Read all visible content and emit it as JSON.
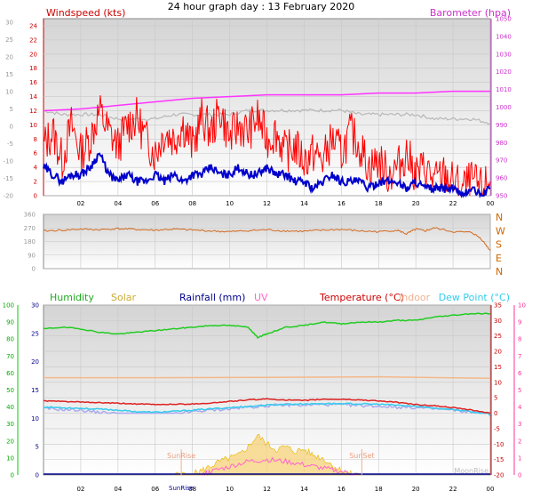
{
  "title": "24 hour graph day : 13 February 2020",
  "colors": {
    "wind": "#ff0000",
    "gust": "#0000cc",
    "baro": "#ff33ff",
    "temp_band": "#b8b8b8",
    "direction": "#d2691e",
    "humidity": "#22cc22",
    "solar": "#e6b800",
    "rain": "#00008b",
    "uv": "#ff66cc",
    "temperature": "#dd2222",
    "indoor": "#f4b88a",
    "dewpoint": "#33ccee",
    "apparent": "#aaaaee",
    "left_axis_green": "#00aa00",
    "right_axis_pink": "#ff3399"
  },
  "chart_data": [
    {
      "type": "line",
      "panel": "wind-baro",
      "labels": {
        "left": "Windspeed (kts)",
        "right": "Barometer (hpa)"
      },
      "x_ticks": [
        "02",
        "04",
        "06",
        "08",
        "10",
        "12",
        "14",
        "16",
        "18",
        "20",
        "22",
        "00"
      ],
      "left_ticks": [
        "24",
        "22",
        "20",
        "18",
        "16",
        "14",
        "12",
        "10",
        "8",
        "6",
        "4",
        "2",
        "0"
      ],
      "outer_left_ticks": [
        "30",
        "25",
        "20",
        "15",
        "10",
        "5",
        "0",
        "-5",
        "-10",
        "-15",
        "-20"
      ],
      "right_ticks": [
        "1050",
        "1040",
        "1030",
        "1020",
        "1010",
        "1000",
        "990",
        "980",
        "970",
        "960",
        "950"
      ],
      "right_range": [
        950,
        1050
      ],
      "left_range": [
        0,
        25
      ],
      "series": [
        {
          "key": "wind",
          "hours": [
            0,
            0.5,
            1,
            1.5,
            2,
            2.5,
            3,
            3.5,
            4,
            4.5,
            5,
            5.5,
            6,
            6.5,
            7,
            7.5,
            8,
            8.5,
            9,
            9.5,
            10,
            10.5,
            11,
            11.5,
            12,
            12.5,
            13,
            13.5,
            14,
            14.5,
            15,
            15.5,
            16,
            16.5,
            17,
            17.5,
            18,
            18.5,
            19,
            19.5,
            20,
            20.5,
            21,
            21.5,
            22,
            22.5,
            23,
            23.5,
            24
          ],
          "values": [
            7,
            9,
            5,
            10,
            6,
            8,
            12,
            9,
            7,
            10,
            11,
            8,
            6,
            9,
            8,
            10,
            7,
            11,
            9,
            12,
            8,
            10,
            9,
            11,
            8,
            9,
            6,
            7,
            5,
            6,
            5,
            8,
            6,
            9,
            7,
            4,
            5,
            3,
            4,
            6,
            3,
            4,
            2,
            3,
            2,
            1,
            2,
            1,
            2
          ]
        },
        {
          "key": "gust",
          "hours": [
            0,
            0.5,
            1,
            1.5,
            2,
            2.5,
            3,
            3.5,
            4,
            4.5,
            5,
            5.5,
            6,
            6.5,
            7,
            7.5,
            8,
            8.5,
            9,
            9.5,
            10,
            10.5,
            11,
            11.5,
            12,
            12.5,
            13,
            13.5,
            14,
            14.5,
            15,
            15.5,
            16,
            16.5,
            17,
            17.5,
            18,
            18.5,
            19,
            19.5,
            20,
            20.5,
            21,
            21.5,
            22,
            22.5,
            23,
            23.5,
            24
          ],
          "values": [
            4,
            3,
            2,
            3,
            3,
            4,
            6,
            3,
            2,
            3,
            2,
            2,
            3,
            2,
            3,
            2,
            3,
            3,
            4,
            3,
            3,
            4,
            3,
            3,
            4,
            3,
            3,
            2,
            2,
            1,
            2,
            3,
            2,
            2,
            2,
            1,
            2,
            2,
            2,
            1,
            2,
            1,
            1,
            1,
            1,
            0,
            1,
            0,
            1
          ]
        },
        {
          "key": "baro",
          "hours": [
            0,
            2,
            4,
            6,
            8,
            10,
            12,
            14,
            16,
            18,
            20,
            22,
            24
          ],
          "values": [
            998,
            999,
            1001,
            1003,
            1005,
            1006,
            1007,
            1007,
            1007,
            1008,
            1008,
            1009,
            1009
          ]
        },
        {
          "key": "temp_band",
          "hours": [
            0,
            1,
            2,
            3,
            4,
            5,
            6,
            7,
            8,
            9,
            10,
            11,
            12,
            13,
            14,
            15,
            16,
            17,
            18,
            19,
            20,
            21,
            22,
            23,
            24
          ],
          "values": [
            6,
            5,
            5,
            5,
            4,
            4,
            4,
            5,
            5,
            5,
            5,
            6,
            6,
            6,
            6,
            6,
            6,
            5,
            5,
            5,
            5,
            4,
            4,
            4,
            3
          ]
        }
      ]
    },
    {
      "type": "line",
      "panel": "direction",
      "right_labels": [
        "N",
        "W",
        "S",
        "E",
        "N"
      ],
      "left_ticks": [
        "360",
        "270",
        "180",
        "90",
        "0"
      ],
      "range": [
        0,
        360
      ],
      "series": [
        {
          "key": "direction",
          "hours": [
            0,
            1,
            2,
            3,
            4,
            5,
            6,
            7,
            8,
            9,
            10,
            11,
            12,
            13,
            14,
            15,
            16,
            17,
            18,
            19,
            19.5,
            20,
            20.5,
            21,
            22,
            23,
            23.5,
            24
          ],
          "values": [
            250,
            255,
            262,
            258,
            265,
            260,
            255,
            262,
            256,
            250,
            245,
            252,
            258,
            250,
            248,
            255,
            260,
            250,
            245,
            255,
            230,
            262,
            250,
            270,
            245,
            240,
            200,
            120
          ]
        }
      ]
    },
    {
      "type": "line",
      "panel": "temp-hum",
      "labels": {
        "humidity": "Humidity",
        "solar": "Solar",
        "rainfall": "Rainfall (mm)",
        "uv": "UV",
        "temperature": "Temperature (°C)",
        "indoor": "Indoor",
        "dewpoint": "Dew Point (°C)"
      },
      "x_ticks": [
        "02",
        "04",
        "06",
        "08",
        "10",
        "12",
        "14",
        "16",
        "18",
        "20",
        "22",
        "00"
      ],
      "humidity_ticks": [
        "100",
        "90",
        "80",
        "70",
        "60",
        "50",
        "40",
        "30",
        "20",
        "10",
        "0"
      ],
      "rain_ticks": [
        "30",
        "25",
        "20",
        "15",
        "10",
        "5",
        "0"
      ],
      "temp_ticks": [
        "35",
        "30",
        "25",
        "20",
        "15",
        "10",
        "5",
        "0",
        "-5",
        "-10",
        "-15",
        "-20"
      ],
      "uv_ticks": [
        "10",
        "9",
        "8",
        "7",
        "6",
        "5",
        "4",
        "3",
        "2",
        "1",
        "0"
      ],
      "events": {
        "sunrise": "SunRise",
        "sunset": "SunSet",
        "moonrise": "MoonRise"
      },
      "series": [
        {
          "key": "humidity",
          "hours": [
            0,
            1,
            2,
            3,
            4,
            5,
            6,
            7,
            8,
            9,
            10,
            11,
            11.5,
            12,
            13,
            14,
            15,
            16,
            17,
            18,
            19,
            20,
            21,
            22,
            23,
            24
          ],
          "values": [
            86,
            87,
            86,
            84,
            83,
            84,
            85,
            86,
            87,
            88,
            88,
            87,
            81,
            83,
            87,
            88,
            90,
            89,
            90,
            90,
            91,
            91,
            93,
            94,
            95,
            95
          ]
        },
        {
          "key": "temperature",
          "hours": [
            0,
            1,
            2,
            3,
            4,
            5,
            6,
            7,
            8,
            9,
            10,
            11,
            12,
            13,
            14,
            15,
            16,
            17,
            18,
            19,
            20,
            21,
            22,
            23,
            24
          ],
          "values": [
            4,
            3.8,
            3.6,
            3.4,
            3.2,
            3,
            2.8,
            2.9,
            3,
            3.3,
            3.8,
            4.3,
            4.6,
            4.3,
            4.1,
            4.5,
            4.5,
            4.3,
            4,
            3.5,
            2.8,
            2.4,
            1.8,
            1,
            0
          ]
        },
        {
          "key": "indoor",
          "hours": [
            0,
            6,
            12,
            18,
            24
          ],
          "values": [
            11.5,
            11.5,
            11.6,
            11.8,
            11.3
          ]
        },
        {
          "key": "dewpoint",
          "hours": [
            0,
            1,
            2,
            3,
            4,
            5,
            6,
            7,
            8,
            9,
            10,
            11,
            12,
            13,
            14,
            15,
            16,
            17,
            18,
            19,
            20,
            21,
            22,
            23,
            24
          ],
          "values": [
            2,
            1.8,
            1.6,
            1.3,
            1,
            0.5,
            0.3,
            0.6,
            1,
            1.4,
            1.8,
            2.2,
            2.6,
            2.9,
            3,
            3.1,
            3.1,
            3,
            2.9,
            2.6,
            2.2,
            1.7,
            1.2,
            0.5,
            -0.8
          ]
        },
        {
          "key": "apparent",
          "hours": [
            0,
            1,
            2,
            3,
            4,
            5,
            6,
            7,
            8,
            9,
            10,
            11,
            12,
            13,
            14,
            15,
            16,
            17,
            18,
            19,
            20,
            21,
            22,
            23,
            24
          ],
          "values": [
            1.5,
            1.2,
            1,
            0.3,
            -0.2,
            -0.6,
            -0.8,
            -0.3,
            0.5,
            1,
            1.4,
            2,
            2.4,
            2.7,
            2.6,
            2.9,
            2.7,
            2.5,
            2.3,
            2,
            1.8,
            1.4,
            1,
            0.3,
            -1
          ]
        },
        {
          "key": "solar",
          "hours": [
            7,
            8,
            8.5,
            9,
            9.5,
            10,
            10.5,
            11,
            11.5,
            12,
            12.5,
            13,
            13.5,
            14,
            14.5,
            15,
            15.5,
            16,
            16.5,
            17
          ],
          "values": [
            0,
            0.2,
            0.8,
            1.6,
            2.4,
            3,
            3.5,
            5,
            7,
            5.5,
            4.5,
            5,
            4.2,
            4.5,
            3.5,
            3,
            1.8,
            0.8,
            0.2,
            0
          ]
        },
        {
          "key": "uv",
          "hours": [
            8.5,
            9,
            10,
            11,
            12,
            13,
            14,
            15,
            16,
            17
          ],
          "values": [
            0,
            0.2,
            0.5,
            0.8,
            0.9,
            0.8,
            0.6,
            0.4,
            0.2,
            0
          ]
        }
      ]
    }
  ]
}
